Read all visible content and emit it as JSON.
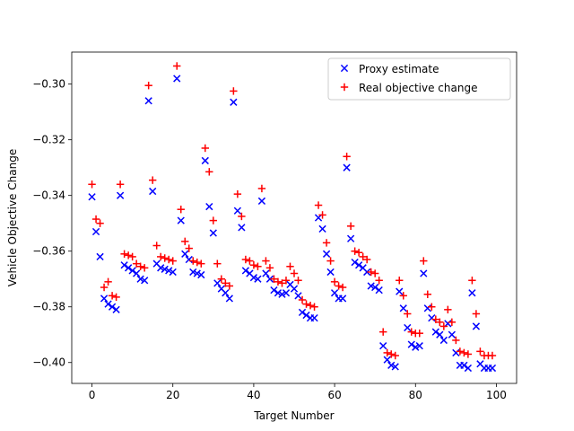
{
  "chart_data": {
    "type": "scatter",
    "xlabel": "Target Number",
    "ylabel": "Vehicle Objective Change",
    "xlim": [
      -5,
      105
    ],
    "ylim": [
      -0.4075,
      -0.2885
    ],
    "xticks": [
      0,
      20,
      40,
      60,
      80,
      100
    ],
    "yticks": [
      -0.4,
      -0.38,
      -0.36,
      -0.34,
      -0.32,
      -0.3
    ],
    "ytick_labels": [
      "−0.40",
      "−0.38",
      "−0.36",
      "−0.34",
      "−0.32",
      "−0.30"
    ],
    "grid": false,
    "legend_position": "top-right",
    "series": [
      {
        "name": "Proxy estimate",
        "marker": "x",
        "color": "#0000ff",
        "x": [
          0,
          1,
          2,
          3,
          4,
          5,
          6,
          7,
          8,
          9,
          10,
          11,
          12,
          13,
          14,
          15,
          16,
          17,
          18,
          19,
          20,
          21,
          22,
          23,
          24,
          25,
          26,
          27,
          28,
          29,
          30,
          31,
          32,
          33,
          34,
          35,
          36,
          37,
          38,
          39,
          40,
          41,
          42,
          43,
          44,
          45,
          46,
          47,
          48,
          49,
          50,
          51,
          52,
          53,
          54,
          55,
          56,
          57,
          58,
          59,
          60,
          61,
          62,
          63,
          64,
          65,
          66,
          67,
          68,
          69,
          70,
          71,
          72,
          73,
          74,
          75,
          76,
          77,
          78,
          79,
          80,
          81,
          82,
          83,
          84,
          85,
          86,
          87,
          88,
          89,
          90,
          91,
          92,
          93,
          94,
          95,
          96,
          97,
          98,
          99
        ],
        "y": [
          -0.3405,
          -0.353,
          -0.362,
          -0.377,
          -0.379,
          -0.38,
          -0.381,
          -0.34,
          -0.365,
          -0.366,
          -0.367,
          -0.368,
          -0.37,
          -0.3705,
          -0.306,
          -0.3385,
          -0.3645,
          -0.366,
          -0.3665,
          -0.367,
          -0.3675,
          -0.298,
          -0.349,
          -0.361,
          -0.363,
          -0.3675,
          -0.368,
          -0.3685,
          -0.3275,
          -0.344,
          -0.3535,
          -0.3715,
          -0.3735,
          -0.375,
          -0.377,
          -0.3065,
          -0.3455,
          -0.3515,
          -0.367,
          -0.368,
          -0.3695,
          -0.37,
          -0.342,
          -0.368,
          -0.37,
          -0.374,
          -0.375,
          -0.3755,
          -0.375,
          -0.372,
          -0.3735,
          -0.376,
          -0.382,
          -0.383,
          -0.384,
          -0.384,
          -0.348,
          -0.352,
          -0.361,
          -0.3675,
          -0.375,
          -0.377,
          -0.377,
          -0.33,
          -0.3555,
          -0.364,
          -0.365,
          -0.366,
          -0.3675,
          -0.3725,
          -0.373,
          -0.374,
          -0.394,
          -0.399,
          -0.401,
          -0.4015,
          -0.3745,
          -0.3805,
          -0.3875,
          -0.3935,
          -0.3945,
          -0.394,
          -0.368,
          -0.3805,
          -0.384,
          -0.389,
          -0.39,
          -0.392,
          -0.386,
          -0.39,
          -0.3965,
          -0.401,
          -0.401,
          -0.402,
          -0.375,
          -0.387,
          -0.4005,
          -0.402,
          -0.402,
          -0.402
        ]
      },
      {
        "name": "Real objective change",
        "marker": "+",
        "color": "#ff0000",
        "x": [
          0,
          1,
          2,
          3,
          4,
          5,
          6,
          7,
          8,
          9,
          10,
          11,
          12,
          13,
          14,
          15,
          16,
          17,
          18,
          19,
          20,
          21,
          22,
          23,
          24,
          25,
          26,
          27,
          28,
          29,
          30,
          31,
          32,
          33,
          34,
          35,
          36,
          37,
          38,
          39,
          40,
          41,
          42,
          43,
          44,
          45,
          46,
          47,
          48,
          49,
          50,
          51,
          52,
          53,
          54,
          55,
          56,
          57,
          58,
          59,
          60,
          61,
          62,
          63,
          64,
          65,
          66,
          67,
          68,
          69,
          70,
          71,
          72,
          73,
          74,
          75,
          76,
          77,
          78,
          79,
          80,
          81,
          82,
          83,
          84,
          85,
          86,
          87,
          88,
          89,
          90,
          91,
          92,
          93,
          94,
          95,
          96,
          97,
          98,
          99
        ],
        "y": [
          -0.336,
          -0.3485,
          -0.35,
          -0.373,
          -0.371,
          -0.376,
          -0.3765,
          -0.336,
          -0.361,
          -0.3615,
          -0.362,
          -0.3645,
          -0.3655,
          -0.366,
          -0.3005,
          -0.3345,
          -0.358,
          -0.362,
          -0.3625,
          -0.363,
          -0.3635,
          -0.2935,
          -0.345,
          -0.3565,
          -0.359,
          -0.3635,
          -0.364,
          -0.3645,
          -0.323,
          -0.3315,
          -0.349,
          -0.3645,
          -0.37,
          -0.3715,
          -0.3725,
          -0.3025,
          -0.3395,
          -0.3475,
          -0.363,
          -0.3635,
          -0.365,
          -0.3655,
          -0.3375,
          -0.3635,
          -0.366,
          -0.37,
          -0.371,
          -0.3715,
          -0.3705,
          -0.3655,
          -0.368,
          -0.3705,
          -0.3775,
          -0.379,
          -0.3795,
          -0.38,
          -0.3435,
          -0.347,
          -0.357,
          -0.3635,
          -0.371,
          -0.3725,
          -0.373,
          -0.326,
          -0.351,
          -0.36,
          -0.3605,
          -0.362,
          -0.363,
          -0.3675,
          -0.368,
          -0.3705,
          -0.389,
          -0.3965,
          -0.397,
          -0.3975,
          -0.3705,
          -0.376,
          -0.3825,
          -0.389,
          -0.3895,
          -0.3895,
          -0.3635,
          -0.3755,
          -0.38,
          -0.3845,
          -0.3855,
          -0.387,
          -0.381,
          -0.3855,
          -0.392,
          -0.396,
          -0.3965,
          -0.397,
          -0.3705,
          -0.3825,
          -0.396,
          -0.3975,
          -0.3975,
          -0.3975
        ]
      }
    ]
  }
}
